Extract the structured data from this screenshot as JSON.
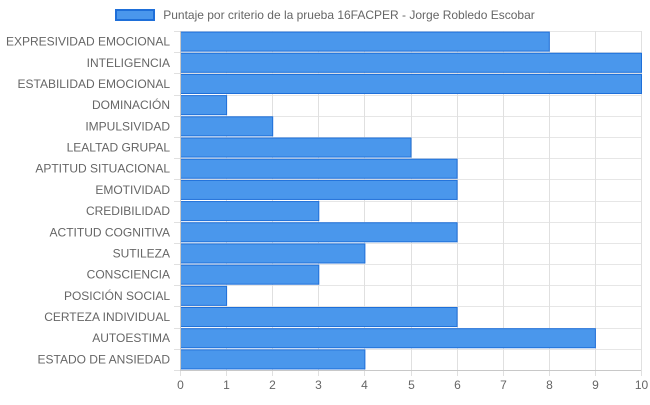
{
  "chart_data": {
    "type": "bar",
    "orientation": "horizontal",
    "categories": [
      "EXPRESIVIDAD EMOCIONAL",
      "INTELIGENCIA",
      "ESTABILIDAD EMOCIONAL",
      "DOMINACIÓN",
      "IMPULSIVIDAD",
      "LEALTAD GRUPAL",
      "APTITUD SITUACIONAL",
      "EMOTIVIDAD",
      "CREDIBILIDAD",
      "ACTITUD COGNITIVA",
      "SUTILEZA",
      "CONSCIENCIA",
      "POSICIÓN SOCIAL",
      "CERTEZA INDIVIDUAL",
      "AUTOESTIMA",
      "ESTADO DE ANSIEDAD"
    ],
    "series": [
      {
        "name": "Puntaje por criterio de la prueba 16FACPER - Jorge Robledo Escobar",
        "values": [
          8,
          10,
          10,
          1,
          2,
          5,
          6,
          6,
          3,
          6,
          4,
          3,
          1,
          6,
          9,
          4
        ],
        "color": "#4a97ec",
        "border_color": "#1e6fd9"
      }
    ],
    "xlim": [
      0,
      10
    ],
    "x_ticks": [
      "0",
      "1",
      "2",
      "3",
      "4",
      "5",
      "6",
      "7",
      "8",
      "9",
      "10"
    ],
    "grid": true,
    "legend_position": "top-center"
  }
}
